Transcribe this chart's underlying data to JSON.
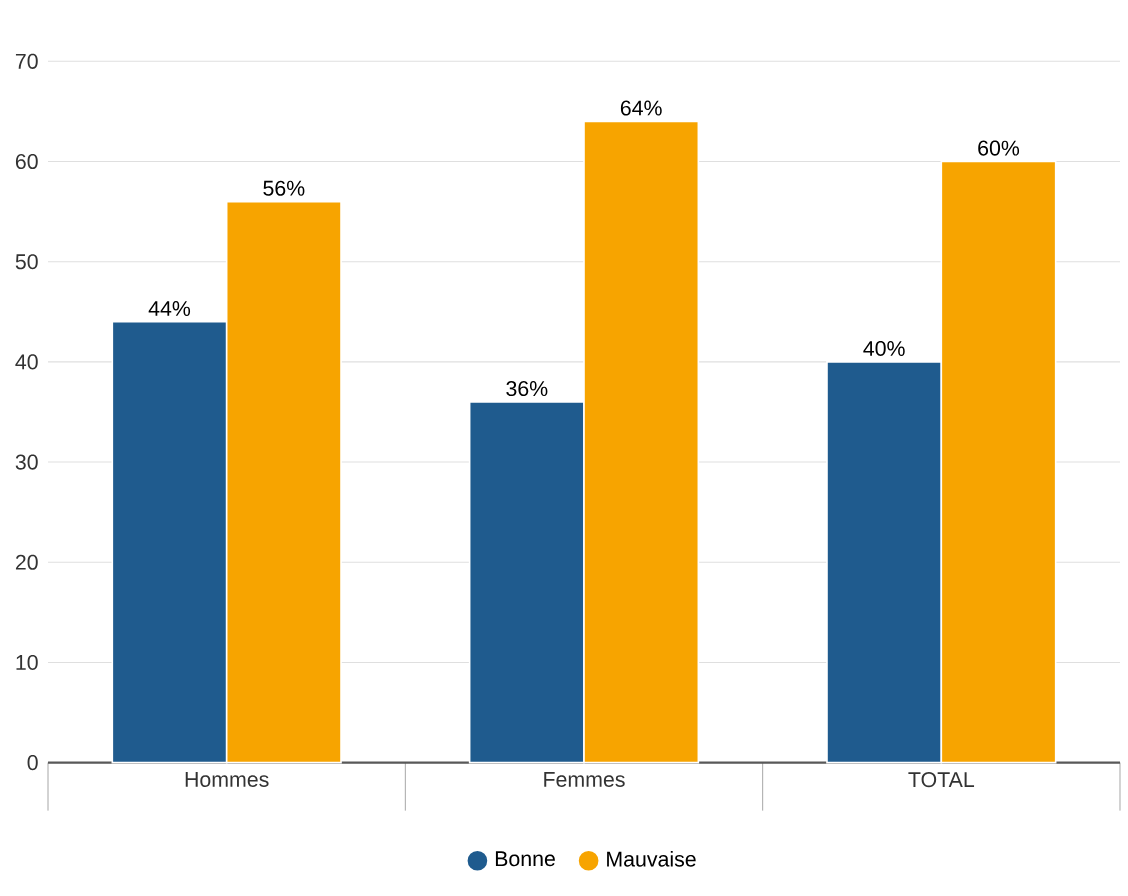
{
  "chart_data": {
    "type": "bar",
    "categories": [
      "Hommes",
      "Femmes",
      "TOTAL"
    ],
    "series": [
      {
        "name": "Bonne",
        "color": "#1f5b8e",
        "values": [
          44,
          36,
          40
        ],
        "value_labels": [
          "44%",
          "36%",
          "40%"
        ]
      },
      {
        "name": "Mauvaise",
        "color": "#f7a400",
        "values": [
          56,
          64,
          60
        ],
        "value_labels": [
          "56%",
          "64%",
          "60%"
        ]
      }
    ],
    "ylim": [
      0,
      70
    ],
    "yticks": [
      0,
      10,
      20,
      30,
      40,
      50,
      60,
      70
    ],
    "grid": "y",
    "legend": "bottom"
  }
}
